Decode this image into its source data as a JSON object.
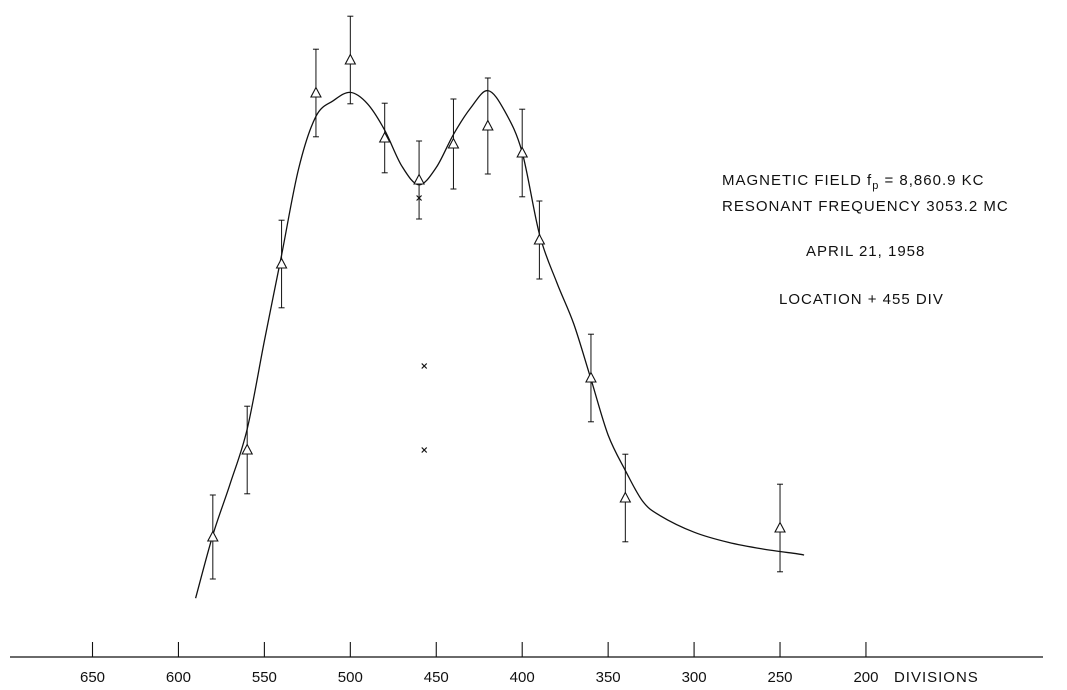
{
  "chart_data": {
    "type": "scatter",
    "title": "",
    "xlabel": "DIVISIONS",
    "ylabel": "",
    "x_reversed": true,
    "xlim": [
      698,
      97
    ],
    "ylim": [
      0,
      100
    ],
    "y_axis_labeled": false,
    "grid": false,
    "legend": "none",
    "xticks": [
      650,
      600,
      550,
      500,
      450,
      400,
      350,
      300,
      250,
      200
    ],
    "series": [
      {
        "marker": "triangle",
        "points": [
          {
            "x": 580,
            "y": 15.5,
            "err": 7.0
          },
          {
            "x": 560,
            "y": 30.0,
            "err": 7.3
          },
          {
            "x": 540,
            "y": 61.0,
            "err": 7.3
          },
          {
            "x": 520,
            "y": 89.5,
            "err": 7.3
          },
          {
            "x": 500,
            "y": 95.0,
            "err": 7.3
          },
          {
            "x": 480,
            "y": 82.0,
            "err": 5.8
          },
          {
            "x": 460,
            "y": 75.0,
            "err": 6.5
          },
          {
            "x": 440,
            "y": 81.0,
            "err": 7.5
          },
          {
            "x": 420,
            "y": 84.0,
            "err": 8.0
          },
          {
            "x": 400,
            "y": 79.5,
            "err": 7.3
          },
          {
            "x": 390,
            "y": 65.0,
            "err": 6.5
          },
          {
            "x": 360,
            "y": 42.0,
            "err": 7.3
          },
          {
            "x": 340,
            "y": 22.0,
            "err": 7.3
          },
          {
            "x": 250,
            "y": 17.0,
            "err": 7.3
          }
        ]
      },
      {
        "marker": "x",
        "points": [
          {
            "x": 460,
            "y": 72.0
          },
          {
            "x": 457,
            "y": 44.0
          },
          {
            "x": 457,
            "y": 30.0
          }
        ]
      }
    ],
    "fit_curve": [
      [
        590,
        5.3
      ],
      [
        580,
        15.8
      ],
      [
        570,
        24.3
      ],
      [
        560,
        33.5
      ],
      [
        550,
        48.2
      ],
      [
        540,
        62.5
      ],
      [
        530,
        77.0
      ],
      [
        520,
        85.6
      ],
      [
        510,
        88.2
      ],
      [
        500,
        89.6
      ],
      [
        490,
        87.7
      ],
      [
        480,
        83.3
      ],
      [
        470,
        77.3
      ],
      [
        460,
        74.2
      ],
      [
        450,
        77.1
      ],
      [
        440,
        82.6
      ],
      [
        430,
        87.0
      ],
      [
        420,
        89.9
      ],
      [
        410,
        86.4
      ],
      [
        400,
        79.6
      ],
      [
        390,
        66.0
      ],
      [
        380,
        58.0
      ],
      [
        370,
        51.0
      ],
      [
        360,
        41.8
      ],
      [
        350,
        32.5
      ],
      [
        340,
        26.6
      ],
      [
        330,
        21.5
      ],
      [
        320,
        19.1
      ],
      [
        300,
        16.3
      ],
      [
        280,
        14.6
      ],
      [
        260,
        13.5
      ],
      [
        240,
        12.7
      ],
      [
        236,
        12.5
      ]
    ],
    "annotations": [
      {
        "text_parts": [
          "MAGNETIC FIELD  f",
          "p",
          " = 8,860.9 KC"
        ]
      },
      {
        "text": "RESONANT FREQUENCY  3053.2 MC"
      },
      {
        "text": "APRIL 21, 1958"
      },
      {
        "text": "LOCATION  +  455  DIV"
      }
    ]
  }
}
